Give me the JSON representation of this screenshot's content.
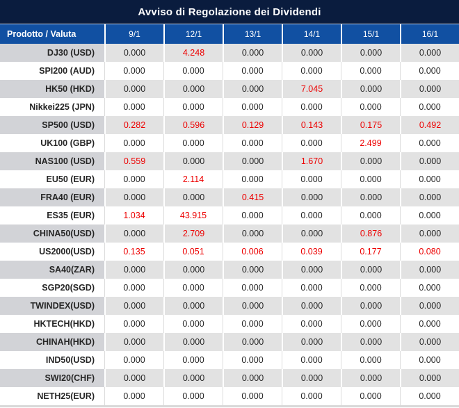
{
  "title": "Avviso di Regolazione dei Dividendi",
  "colors": {
    "title_bar_bg": "#0a1c3e",
    "header_bg": "#1150a2",
    "header_text": "#ffffff",
    "gray_row_product_bg": "#d2d3d7",
    "gray_row_value_bg": "#e2e2e2",
    "white_row_bg": "#ffffff",
    "body_text": "#262626",
    "highlight_red": "#ed0000",
    "bottom_strip": "#d8d8d8"
  },
  "table": {
    "header": {
      "product_col": "Prodotto / Valuta",
      "dates": [
        "9/1",
        "12/1",
        "13/1",
        "14/1",
        "15/1",
        "16/1"
      ]
    },
    "rows": [
      {
        "product": "DJ30 (USD)",
        "values": [
          "0.000",
          "4.248",
          "0.000",
          "0.000",
          "0.000",
          "0.000"
        ],
        "red": [
          false,
          true,
          false,
          false,
          false,
          false
        ]
      },
      {
        "product": "SPI200 (AUD)",
        "values": [
          "0.000",
          "0.000",
          "0.000",
          "0.000",
          "0.000",
          "0.000"
        ],
        "red": [
          false,
          false,
          false,
          false,
          false,
          false
        ]
      },
      {
        "product": "HK50 (HKD)",
        "values": [
          "0.000",
          "0.000",
          "0.000",
          "7.045",
          "0.000",
          "0.000"
        ],
        "red": [
          false,
          false,
          false,
          true,
          false,
          false
        ]
      },
      {
        "product": "Nikkei225 (JPN)",
        "values": [
          "0.000",
          "0.000",
          "0.000",
          "0.000",
          "0.000",
          "0.000"
        ],
        "red": [
          false,
          false,
          false,
          false,
          false,
          false
        ]
      },
      {
        "product": "SP500 (USD)",
        "values": [
          "0.282",
          "0.596",
          "0.129",
          "0.143",
          "0.175",
          "0.492"
        ],
        "red": [
          true,
          true,
          true,
          true,
          true,
          true
        ]
      },
      {
        "product": "UK100 (GBP)",
        "values": [
          "0.000",
          "0.000",
          "0.000",
          "0.000",
          "2.499",
          "0.000"
        ],
        "red": [
          false,
          false,
          false,
          false,
          true,
          false
        ]
      },
      {
        "product": "NAS100 (USD)",
        "values": [
          "0.559",
          "0.000",
          "0.000",
          "1.670",
          "0.000",
          "0.000"
        ],
        "red": [
          true,
          false,
          false,
          true,
          false,
          false
        ]
      },
      {
        "product": "EU50 (EUR)",
        "values": [
          "0.000",
          "2.114",
          "0.000",
          "0.000",
          "0.000",
          "0.000"
        ],
        "red": [
          false,
          true,
          false,
          false,
          false,
          false
        ]
      },
      {
        "product": "FRA40 (EUR)",
        "values": [
          "0.000",
          "0.000",
          "0.415",
          "0.000",
          "0.000",
          "0.000"
        ],
        "red": [
          false,
          false,
          true,
          false,
          false,
          false
        ]
      },
      {
        "product": "ES35 (EUR)",
        "values": [
          "1.034",
          "43.915",
          "0.000",
          "0.000",
          "0.000",
          "0.000"
        ],
        "red": [
          true,
          true,
          false,
          false,
          false,
          false
        ]
      },
      {
        "product": "CHINA50(USD)",
        "values": [
          "0.000",
          "2.709",
          "0.000",
          "0.000",
          "0.876",
          "0.000"
        ],
        "red": [
          false,
          true,
          false,
          false,
          true,
          false
        ]
      },
      {
        "product": "US2000(USD)",
        "values": [
          "0.135",
          "0.051",
          "0.006",
          "0.039",
          "0.177",
          "0.080"
        ],
        "red": [
          true,
          true,
          true,
          true,
          true,
          true
        ]
      },
      {
        "product": "SA40(ZAR)",
        "values": [
          "0.000",
          "0.000",
          "0.000",
          "0.000",
          "0.000",
          "0.000"
        ],
        "red": [
          false,
          false,
          false,
          false,
          false,
          false
        ]
      },
      {
        "product": "SGP20(SGD)",
        "values": [
          "0.000",
          "0.000",
          "0.000",
          "0.000",
          "0.000",
          "0.000"
        ],
        "red": [
          false,
          false,
          false,
          false,
          false,
          false
        ]
      },
      {
        "product": "TWINDEX(USD)",
        "values": [
          "0.000",
          "0.000",
          "0.000",
          "0.000",
          "0.000",
          "0.000"
        ],
        "red": [
          false,
          false,
          false,
          false,
          false,
          false
        ]
      },
      {
        "product": "HKTECH(HKD)",
        "values": [
          "0.000",
          "0.000",
          "0.000",
          "0.000",
          "0.000",
          "0.000"
        ],
        "red": [
          false,
          false,
          false,
          false,
          false,
          false
        ]
      },
      {
        "product": "CHINAH(HKD)",
        "values": [
          "0.000",
          "0.000",
          "0.000",
          "0.000",
          "0.000",
          "0.000"
        ],
        "red": [
          false,
          false,
          false,
          false,
          false,
          false
        ]
      },
      {
        "product": "IND50(USD)",
        "values": [
          "0.000",
          "0.000",
          "0.000",
          "0.000",
          "0.000",
          "0.000"
        ],
        "red": [
          false,
          false,
          false,
          false,
          false,
          false
        ]
      },
      {
        "product": "SWI20(CHF)",
        "values": [
          "0.000",
          "0.000",
          "0.000",
          "0.000",
          "0.000",
          "0.000"
        ],
        "red": [
          false,
          false,
          false,
          false,
          false,
          false
        ]
      },
      {
        "product": "NETH25(EUR)",
        "values": [
          "0.000",
          "0.000",
          "0.000",
          "0.000",
          "0.000",
          "0.000"
        ],
        "red": [
          false,
          false,
          false,
          false,
          false,
          false
        ]
      }
    ]
  }
}
